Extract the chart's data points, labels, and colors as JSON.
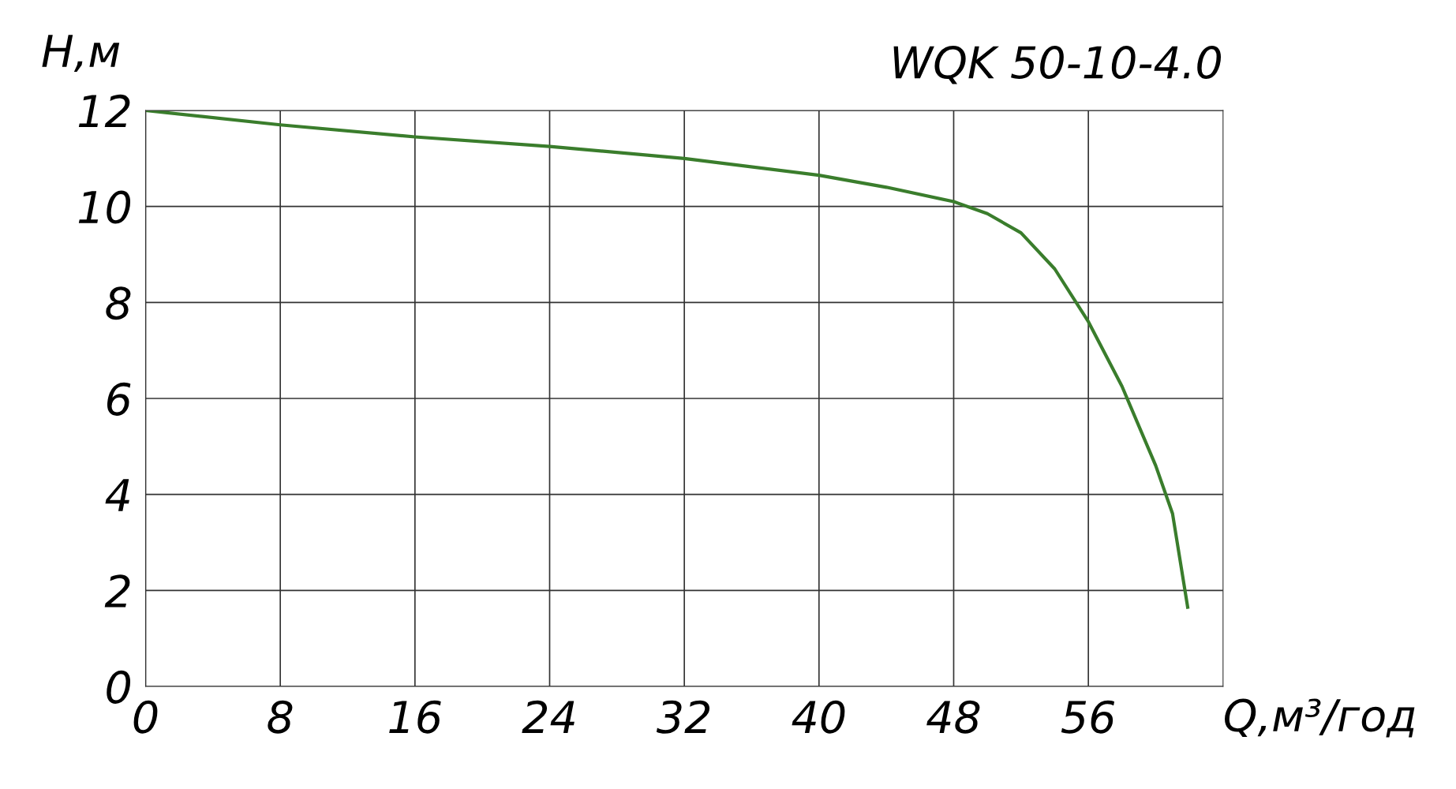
{
  "chart_data": {
    "type": "line",
    "title": "WQK 50-10-4.0",
    "xlabel": "Q,м³/год",
    "ylabel": "Н,м",
    "x": [
      0,
      8,
      16,
      24,
      32,
      40,
      44,
      48,
      50,
      52,
      54,
      56,
      58,
      60,
      61,
      61.9
    ],
    "series": [
      {
        "color": "#3a7d2c",
        "values": [
          12.0,
          11.7,
          11.45,
          11.25,
          11.0,
          10.65,
          10.4,
          10.1,
          9.85,
          9.45,
          8.7,
          7.6,
          6.25,
          4.6,
          3.6,
          1.65
        ]
      }
    ],
    "xlim": [
      0,
      64
    ],
    "xticks": [
      0,
      8,
      16,
      24,
      32,
      40,
      48,
      56
    ],
    "ylim": [
      0,
      12
    ],
    "yticks": [
      0,
      2,
      4,
      6,
      8,
      10,
      12
    ],
    "grid": true,
    "marker": "none",
    "line_style": "solid"
  }
}
